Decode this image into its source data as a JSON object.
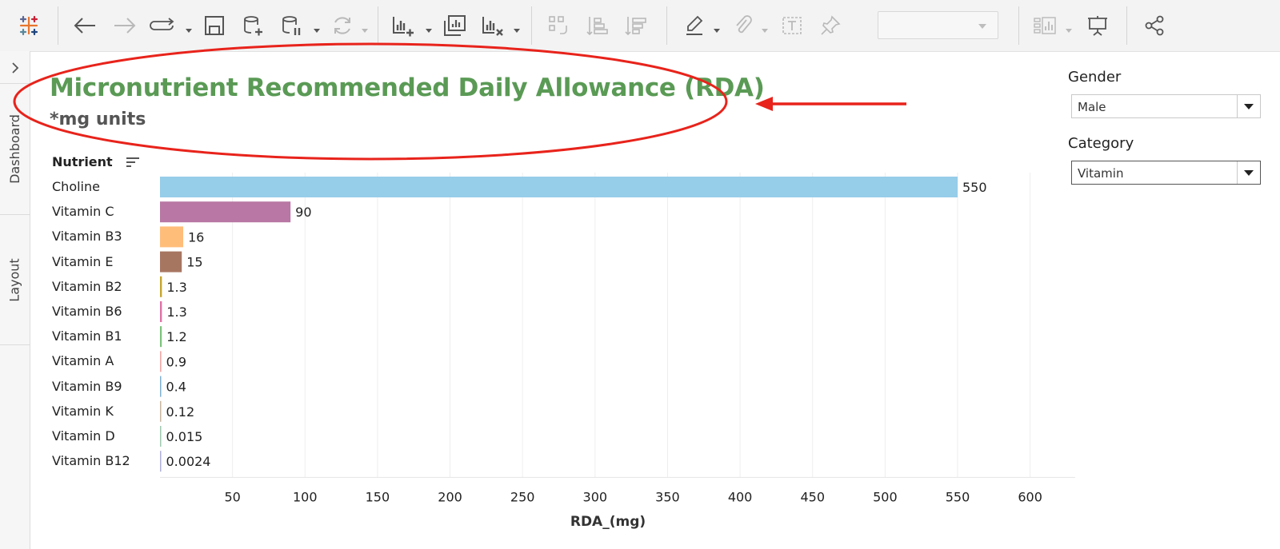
{
  "sidebar": {
    "tabs": [
      {
        "label": "Dashboard"
      },
      {
        "label": "Layout"
      }
    ]
  },
  "dashboard": {
    "title": "Micronutrient Recommended Daily Allowance (RDA)",
    "subtitle": "*mg units"
  },
  "filters": {
    "gender": {
      "label": "Gender",
      "value": "Male"
    },
    "category": {
      "label": "Category",
      "value": "Vitamin"
    }
  },
  "colors": {
    "title": "#5a9a55",
    "annotation": "#e8231b"
  },
  "chart_data": {
    "type": "bar",
    "orientation": "horizontal",
    "row_header": "Nutrient",
    "xlabel": "RDA_(mg)",
    "xlim": [
      0,
      620
    ],
    "xticks": [
      50,
      100,
      150,
      200,
      250,
      300,
      350,
      400,
      450,
      500,
      550,
      600
    ],
    "grid": true,
    "categories": [
      "Choline",
      "Vitamin C",
      "Vitamin B3",
      "Vitamin E",
      "Vitamin B2",
      "Vitamin B6",
      "Vitamin B1",
      "Vitamin A",
      "Vitamin B9",
      "Vitamin K",
      "Vitamin D",
      "Vitamin B12"
    ],
    "values": [
      550,
      90,
      16,
      15,
      1.3,
      1.3,
      1.2,
      0.9,
      0.4,
      0.12,
      0.015,
      0.0024
    ],
    "value_labels": [
      "550",
      "90",
      "16",
      "15",
      "1.3",
      "1.3",
      "1.2",
      "0.9",
      "0.4",
      "0.12",
      "0.015",
      "0.0024"
    ],
    "bar_colors": [
      "#96cde9",
      "#b877a4",
      "#ffbd7a",
      "#a77661",
      "#c7a52d",
      "#e071a5",
      "#7bc37b",
      "#f1a7a7",
      "#7fb0d2",
      "#c9b7a0",
      "#9fc9b0",
      "#b0b0d8"
    ]
  }
}
